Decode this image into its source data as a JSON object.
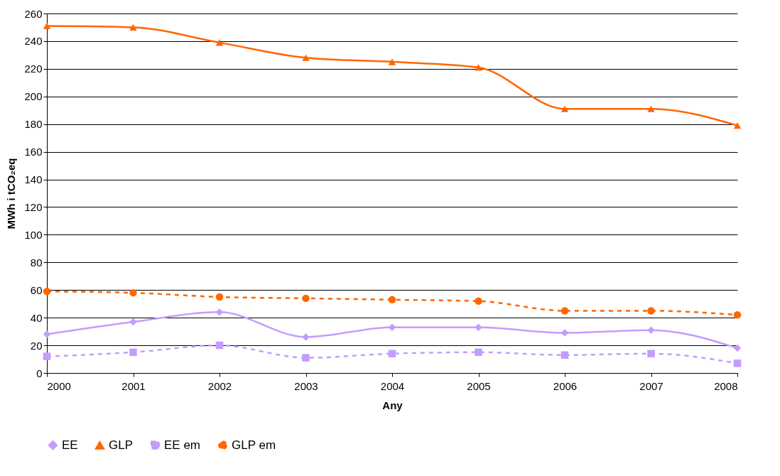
{
  "chart_data": {
    "type": "line",
    "xlabel": "Any",
    "ylabel": "MWh i tCO₂eq",
    "x": [
      2000,
      2001,
      2002,
      2003,
      2004,
      2005,
      2006,
      2007,
      2008
    ],
    "xlim": [
      2000,
      2008
    ],
    "xticks": [
      2000,
      2001,
      2002,
      2003,
      2004,
      2005,
      2006,
      2007,
      2008
    ],
    "ylim": [
      0,
      260
    ],
    "yticks": [
      0,
      20,
      40,
      60,
      80,
      100,
      120,
      140,
      160,
      180,
      200,
      220,
      240,
      260
    ],
    "grid": "y",
    "legend": "bottom",
    "series": [
      {
        "name": "EE",
        "color": "#c49cff",
        "marker": "diamond",
        "line_style": "solid",
        "values": [
          28,
          37,
          44,
          26,
          33,
          33,
          29,
          31,
          18
        ]
      },
      {
        "name": "GLP",
        "color": "#ff6600",
        "marker": "triangle",
        "line_style": "solid",
        "values": [
          251,
          250,
          239,
          228,
          225,
          221,
          191,
          191,
          179
        ]
      },
      {
        "name": "EE em",
        "color": "#c49cff",
        "marker": "square",
        "line_style": "dashed",
        "values": [
          12,
          15,
          20,
          11,
          14,
          15,
          13,
          14,
          7
        ]
      },
      {
        "name": "GLP em",
        "color": "#ff6600",
        "marker": "circle",
        "line_style": "dashed",
        "values": [
          59,
          58,
          55,
          54,
          53,
          52,
          45,
          45,
          42
        ]
      }
    ]
  }
}
